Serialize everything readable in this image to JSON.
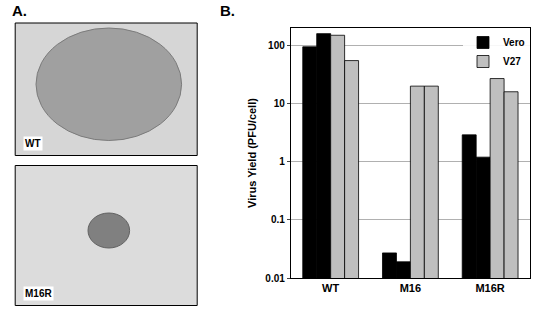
{
  "panels": {
    "A": {
      "label": "A.",
      "images": [
        {
          "label": "WT"
        },
        {
          "label": "M16R"
        }
      ]
    },
    "B": {
      "label": "B."
    }
  },
  "chart_data": {
    "type": "bar",
    "categories": [
      "WT",
      "M16",
      "M16R"
    ],
    "series": [
      {
        "name": "Vero",
        "color": "#000000",
        "values": [
          95,
          0.027,
          2.9
        ]
      },
      {
        "name": "Vero",
        "color": "#000000",
        "values": [
          160,
          0.019,
          1.2
        ]
      },
      {
        "name": "V27",
        "color": "#bfbfbf",
        "values": [
          150,
          20,
          27
        ]
      },
      {
        "name": "V27",
        "color": "#bfbfbf",
        "values": [
          55,
          20,
          16
        ]
      }
    ],
    "y_label": "Virus Yield (PFU/cell)",
    "ylim": [
      0.01,
      200
    ],
    "yticks": [
      0.01,
      0.1,
      1,
      10,
      100
    ],
    "log": "y",
    "grid": true,
    "legend": "upper right"
  }
}
